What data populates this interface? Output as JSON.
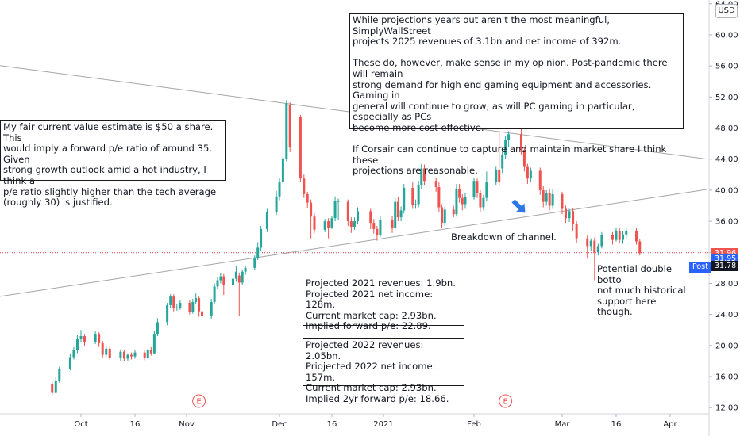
{
  "chart_data": {
    "type": "candlestick",
    "currency": "USD",
    "y_ticks": [
      "12.00",
      "16.00",
      "20.00",
      "24.00",
      "28.00",
      "32.00",
      "36.00",
      "40.00",
      "44.00",
      "48.00",
      "52.00",
      "56.00",
      "60.00",
      "64.00"
    ],
    "ylim": [
      11,
      65
    ],
    "x_ticks": [
      "Oct",
      "16",
      "Nov",
      "Dec",
      "16",
      "2021",
      "Feb",
      "Mar",
      "16",
      "Apr"
    ],
    "x_tick_dates": [
      "2020-10-01",
      "2020-10-16",
      "2020-11-01",
      "2020-12-01",
      "2020-12-16",
      "2021-01-01",
      "2021-02-01",
      "2021-03-01",
      "2021-03-16",
      "2021-04-01"
    ],
    "up_color": "#26a69a",
    "down_color": "#ef5350",
    "candles": [
      [
        "2020-09-23",
        15.0,
        13.9,
        15.3,
        13.6
      ],
      [
        "2020-09-24",
        13.9,
        15.5,
        15.9,
        13.8
      ],
      [
        "2020-09-25",
        15.5,
        17.0,
        17.3,
        15.2
      ],
      [
        "2020-09-28",
        17.0,
        18.5,
        18.9,
        16.8
      ],
      [
        "2020-09-29",
        18.5,
        19.4,
        19.8,
        18.2
      ],
      [
        "2020-09-30",
        19.4,
        20.8,
        21.4,
        19.0
      ],
      [
        "2020-10-01",
        20.8,
        21.2,
        22.0,
        20.4
      ],
      [
        "2020-10-02",
        21.2,
        20.5,
        21.5,
        20.0
      ],
      [
        "2020-10-05",
        20.5,
        21.5,
        21.8,
        20.2
      ],
      [
        "2020-10-06",
        21.5,
        20.3,
        21.7,
        19.8
      ],
      [
        "2020-10-07",
        20.3,
        18.8,
        20.6,
        18.4
      ],
      [
        "2020-10-08",
        18.8,
        19.6,
        20.0,
        18.5
      ],
      [
        "2020-10-09",
        19.6,
        18.4,
        19.9,
        18.1
      ],
      [
        "2020-10-12",
        18.4,
        19.2,
        19.5,
        18.0
      ],
      [
        "2020-10-13",
        19.2,
        18.3,
        19.4,
        18.0
      ],
      [
        "2020-10-14",
        18.3,
        18.8,
        19.0,
        18.0
      ],
      [
        "2020-10-15",
        18.8,
        18.6,
        19.1,
        18.2
      ],
      [
        "2020-10-16",
        18.6,
        19.1,
        19.4,
        18.3
      ],
      [
        "2020-10-19",
        19.1,
        18.4,
        19.4,
        18.1
      ],
      [
        "2020-10-20",
        18.4,
        19.4,
        19.6,
        18.2
      ],
      [
        "2020-10-21",
        19.4,
        19.0,
        19.8,
        18.7
      ],
      [
        "2020-10-22",
        19.0,
        21.5,
        21.9,
        18.9
      ],
      [
        "2020-10-23",
        21.5,
        23.0,
        23.5,
        21.2
      ],
      [
        "2020-10-26",
        23.0,
        25.2,
        25.5,
        22.6
      ],
      [
        "2020-10-27",
        25.2,
        26.3,
        26.6,
        24.8
      ],
      [
        "2020-10-28",
        26.3,
        24.8,
        26.6,
        24.4
      ],
      [
        "2020-10-29",
        24.8,
        24.9,
        25.3,
        24.5
      ],
      [
        "2020-10-30",
        24.9,
        25.5,
        25.8,
        24.6
      ],
      [
        "2020-11-02",
        25.5,
        24.3,
        25.8,
        24.0
      ],
      [
        "2020-11-03",
        24.3,
        25.6,
        26.0,
        24.1
      ],
      [
        "2020-11-04",
        25.6,
        26.1,
        26.7,
        25.3
      ],
      [
        "2020-11-05",
        26.1,
        24.4,
        26.3,
        23.7
      ],
      [
        "2020-11-06",
        24.4,
        23.8,
        24.9,
        22.6
      ],
      [
        "2020-11-09",
        23.8,
        25.6,
        26.0,
        23.4
      ],
      [
        "2020-11-10",
        25.6,
        27.6,
        28.0,
        25.3
      ],
      [
        "2020-11-11",
        27.6,
        28.4,
        28.8,
        27.2
      ],
      [
        "2020-11-12",
        28.4,
        28.9,
        29.3,
        28.0
      ],
      [
        "2020-11-13",
        28.9,
        27.8,
        29.2,
        26.5
      ],
      [
        "2020-11-16",
        27.8,
        28.6,
        29.0,
        27.4
      ],
      [
        "2020-11-17",
        28.6,
        29.5,
        30.2,
        28.2
      ],
      [
        "2020-11-18",
        29.0,
        28.1,
        29.4,
        23.8
      ],
      [
        "2020-11-19",
        28.1,
        29.5,
        29.8,
        27.8
      ],
      [
        "2020-11-20",
        29.5,
        30.0,
        30.3,
        29.1
      ],
      [
        "2020-11-23",
        30.0,
        31.3,
        31.6,
        29.7
      ],
      [
        "2020-11-24",
        31.3,
        32.6,
        33.3,
        31.0
      ],
      [
        "2020-11-25",
        32.6,
        35.0,
        35.4,
        32.2
      ],
      [
        "2020-11-27",
        35.0,
        37.2,
        37.6,
        34.6
      ],
      [
        "2020-11-30",
        37.2,
        39.2,
        39.9,
        36.8
      ],
      [
        "2020-12-01",
        39.2,
        41.0,
        41.6,
        38.7
      ],
      [
        "2020-12-02",
        41.0,
        44.1,
        46.6,
        40.8
      ],
      [
        "2020-12-03",
        44.0,
        51.2,
        51.6,
        43.7
      ],
      [
        "2020-12-04",
        51.0,
        45.5,
        51.3,
        44.9
      ],
      [
        "2020-12-07",
        49.4,
        41.5,
        49.7,
        41.0
      ],
      [
        "2020-12-08",
        41.5,
        39.5,
        42.0,
        39.0
      ],
      [
        "2020-12-09",
        39.5,
        38.4,
        39.8,
        37.7
      ],
      [
        "2020-12-10",
        38.4,
        36.6,
        38.8,
        33.8
      ],
      [
        "2020-12-11",
        36.6,
        34.9,
        37.0,
        34.5
      ],
      [
        "2020-12-14",
        34.9,
        36.0,
        36.3,
        34.6
      ],
      [
        "2020-12-15",
        36.0,
        35.2,
        36.4,
        33.8
      ],
      [
        "2020-12-16",
        35.2,
        36.4,
        36.7,
        35.0
      ],
      [
        "2020-12-17",
        36.4,
        38.6,
        39.2,
        36.0
      ],
      [
        "2020-12-18",
        38.6,
        38.6,
        38.9,
        36.2
      ],
      [
        "2020-12-21",
        38.5,
        36.0,
        38.8,
        35.4
      ],
      [
        "2020-12-22",
        36.0,
        35.3,
        36.5,
        34.5
      ],
      [
        "2020-12-23",
        35.3,
        36.0,
        36.5,
        34.9
      ],
      [
        "2020-12-24",
        36.0,
        37.3,
        37.8,
        35.6
      ],
      [
        "2020-12-28",
        37.3,
        35.8,
        37.6,
        35.0
      ],
      [
        "2020-12-29",
        35.8,
        35.0,
        36.3,
        34.4
      ],
      [
        "2020-12-30",
        35.0,
        34.2,
        35.4,
        33.5
      ],
      [
        "2020-12-31",
        34.2,
        36.2,
        36.6,
        34.0
      ],
      [
        "2021-01-04",
        36.2,
        35.1,
        36.7,
        34.5
      ],
      [
        "2021-01-05",
        35.1,
        38.5,
        39.0,
        34.8
      ],
      [
        "2021-01-06",
        38.5,
        36.5,
        39.1,
        36.0
      ],
      [
        "2021-01-07",
        36.5,
        37.4,
        37.9,
        36.0
      ],
      [
        "2021-01-08",
        37.4,
        40.3,
        40.8,
        37.0
      ],
      [
        "2021-01-11",
        40.3,
        38.1,
        41.0,
        37.6
      ],
      [
        "2021-01-12",
        38.1,
        38.2,
        38.8,
        37.6
      ],
      [
        "2021-01-13",
        38.2,
        40.6,
        41.2,
        37.8
      ],
      [
        "2021-01-14",
        40.6,
        42.8,
        43.4,
        40.2
      ],
      [
        "2021-01-15",
        42.8,
        41.2,
        43.3,
        40.6
      ],
      [
        "2021-01-19",
        41.2,
        40.4,
        41.6,
        39.8
      ],
      [
        "2021-01-20",
        40.4,
        37.8,
        41.0,
        37.2
      ],
      [
        "2021-01-21",
        37.8,
        35.8,
        38.2,
        35.2
      ],
      [
        "2021-01-22",
        35.8,
        37.5,
        37.9,
        35.4
      ],
      [
        "2021-01-25",
        37.5,
        36.9,
        38.0,
        36.5
      ],
      [
        "2021-01-26",
        36.9,
        40.2,
        40.8,
        36.6
      ],
      [
        "2021-01-27",
        40.2,
        39.0,
        40.8,
        38.4
      ],
      [
        "2021-01-28",
        39.0,
        38.2,
        39.5,
        37.4
      ],
      [
        "2021-01-29",
        38.2,
        39.1,
        39.6,
        37.6
      ],
      [
        "2021-02-01",
        39.1,
        41.2,
        41.6,
        38.8
      ],
      [
        "2021-02-02",
        41.2,
        39.6,
        41.5,
        39.0
      ],
      [
        "2021-02-03",
        39.6,
        37.8,
        40.0,
        37.2
      ],
      [
        "2021-02-04",
        37.8,
        39.0,
        39.4,
        37.4
      ],
      [
        "2021-02-05",
        39.0,
        41.0,
        42.4,
        38.6
      ],
      [
        "2021-02-08",
        41.0,
        42.6,
        43.0,
        40.6
      ],
      [
        "2021-02-09",
        42.6,
        41.1,
        47.6,
        40.5
      ],
      [
        "2021-02-10",
        42.8,
        44.5,
        45.2,
        42.2
      ],
      [
        "2021-02-11",
        44.5,
        46.5,
        47.0,
        44.0
      ],
      [
        "2021-02-12",
        46.5,
        47.2,
        47.6,
        45.6
      ],
      [
        "2021-02-16",
        47.2,
        45.2,
        48.3,
        44.6
      ],
      [
        "2021-02-17",
        45.2,
        43.0,
        45.6,
        42.4
      ],
      [
        "2021-02-18",
        43.0,
        41.5,
        43.4,
        40.8
      ],
      [
        "2021-02-19",
        41.5,
        42.5,
        42.9,
        41.0
      ],
      [
        "2021-02-22",
        42.5,
        40.0,
        42.9,
        39.4
      ],
      [
        "2021-02-23",
        40.0,
        38.5,
        40.5,
        37.8
      ],
      [
        "2021-02-24",
        38.5,
        39.6,
        40.0,
        38.0
      ],
      [
        "2021-02-25",
        39.6,
        38.0,
        40.2,
        37.4
      ],
      [
        "2021-02-26",
        38.0,
        39.5,
        40.1,
        37.6
      ],
      [
        "2021-03-01",
        39.5,
        37.6,
        39.8,
        36.9
      ],
      [
        "2021-03-02",
        37.6,
        36.4,
        38.0,
        35.8
      ],
      [
        "2021-03-03",
        36.4,
        37.3,
        37.6,
        35.9
      ],
      [
        "2021-03-04",
        37.3,
        35.6,
        37.7,
        34.8
      ],
      [
        "2021-03-05",
        35.6,
        33.8,
        36.0,
        33.2
      ],
      [
        "2021-03-08",
        33.8,
        32.8,
        34.2,
        31.2
      ],
      [
        "2021-03-09",
        32.8,
        33.5,
        33.8,
        32.2
      ],
      [
        "2021-03-10",
        33.5,
        32.0,
        33.9,
        28.4
      ],
      [
        "2021-03-11",
        32.0,
        32.8,
        33.1,
        31.6
      ],
      [
        "2021-03-12",
        32.8,
        34.2,
        34.6,
        32.5
      ],
      [
        "2021-03-15",
        34.2,
        33.6,
        34.6,
        33.0
      ],
      [
        "2021-03-16",
        33.6,
        34.8,
        35.2,
        33.4
      ],
      [
        "2021-03-17",
        34.8,
        33.6,
        35.2,
        33.2
      ],
      [
        "2021-03-18",
        33.6,
        34.3,
        34.8,
        33.1
      ],
      [
        "2021-03-19",
        34.3,
        34.8,
        35.2,
        33.8
      ],
      [
        "2021-03-22",
        34.8,
        33.4,
        35.2,
        33.0
      ],
      [
        "2021-03-23",
        33.4,
        31.9,
        33.7,
        31.6
      ]
    ],
    "trendlines": [
      {
        "from": [
          "2020-09-01",
          56.5
        ],
        "to": [
          "2021-04-12",
          44.0
        ],
        "color": "#a5a5a5"
      },
      {
        "from": [
          "2020-09-01",
          25.8
        ],
        "to": [
          "2021-04-12",
          40.1
        ],
        "color": "#a5a5a5"
      }
    ],
    "h_lines": [
      {
        "value": 31.96,
        "color": "#ef5350"
      },
      {
        "value": 31.78,
        "color": "#2962ff"
      }
    ],
    "price_labels": [
      {
        "value": 31.96,
        "text": "31.96",
        "color": "#ef5350"
      },
      {
        "value": 31.95,
        "text": "31.95",
        "color": "#2962ff"
      },
      {
        "value": 31.78,
        "text": "31.78",
        "color": "#131722"
      }
    ],
    "post_label": "Post",
    "earnings_markers": [
      {
        "date": "2020-11-05",
        "label": "E"
      },
      {
        "date": "2021-02-11",
        "label": "E"
      }
    ],
    "arrow": {
      "date": "2021-02-16",
      "value": 37.6,
      "color": "#2e78e6"
    },
    "annotations": {
      "top": "While projections years out aren't the most meaningful, SimplyWallStreet\nprojects 2025 revenues of 3.1bn and net income of 392m.\n\nThese do, however, make sense in my opinion. Post-pandemic there will remain\nstrong demand for high end gaming equipment and accessories. Gaming in\ngeneral will continue to grow, as will PC gaming in particular, especially as PCs\nbecome more cost effective.\n\nIf Corsair can continue to capture and maintain market share I think these\nprojections are reasonable.",
      "left": "My fair current value estimate is $50 a share. This\nwould imply a forward p/e ratio of around 35. Given\nstrong growth outlook amid a hot industry, I think a\np/e ratio slightly higher than the tech average\n(roughly 30) is justified.",
      "y2021": "Projected 2021 revenues: 1.9bn.\nProjected 2021 net income: 128m.\nCurrent market cap: 2.93bn.\nImplied forward p/e: 22.89.",
      "y2022": "Projected 2022 revenues: 2.05bn.\nPriojected 2022 net income: 157m.\nCurrent market cap: 2.93bn.\nImplied 2yr forward p/e: 18.66.",
      "breakdown": "Breakdown of channel.",
      "double_bottom": "Potential double botto\nnot much historical\nsupport here though."
    }
  }
}
